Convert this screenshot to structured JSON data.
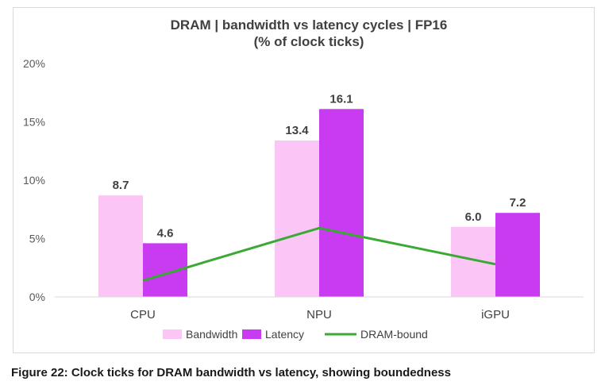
{
  "chart_data": {
    "type": "bar+line",
    "title_line1": "DRAM | bandwidth vs latency cycles | FP16",
    "title_line2": "(% of clock ticks)",
    "categories": [
      "CPU",
      "NPU",
      "iGPU"
    ],
    "series": [
      {
        "name": "Bandwidth",
        "type": "bar",
        "color": "#fbc5f5",
        "values": [
          8.7,
          13.4,
          6.0
        ],
        "labels": [
          "8.7",
          "13.4",
          "6.0"
        ]
      },
      {
        "name": "Latency",
        "type": "bar",
        "color": "#c83bf0",
        "values": [
          4.6,
          16.1,
          7.2
        ],
        "labels": [
          "4.6",
          "16.1",
          "7.2"
        ]
      },
      {
        "name": "DRAM-bound",
        "type": "line",
        "color": "#3aaa35",
        "values": [
          1.4,
          5.9,
          2.8
        ]
      }
    ],
    "y_ticks": [
      0,
      5,
      10,
      15,
      20
    ],
    "y_tick_labels": [
      "0%",
      "5%",
      "10%",
      "15%",
      "20%"
    ],
    "ylim": [
      0,
      20
    ],
    "xlabel": "",
    "ylabel": "",
    "grid": false,
    "legend_position": "bottom"
  },
  "caption": "Figure 22: Clock ticks for DRAM bandwidth vs latency, showing boundedness"
}
